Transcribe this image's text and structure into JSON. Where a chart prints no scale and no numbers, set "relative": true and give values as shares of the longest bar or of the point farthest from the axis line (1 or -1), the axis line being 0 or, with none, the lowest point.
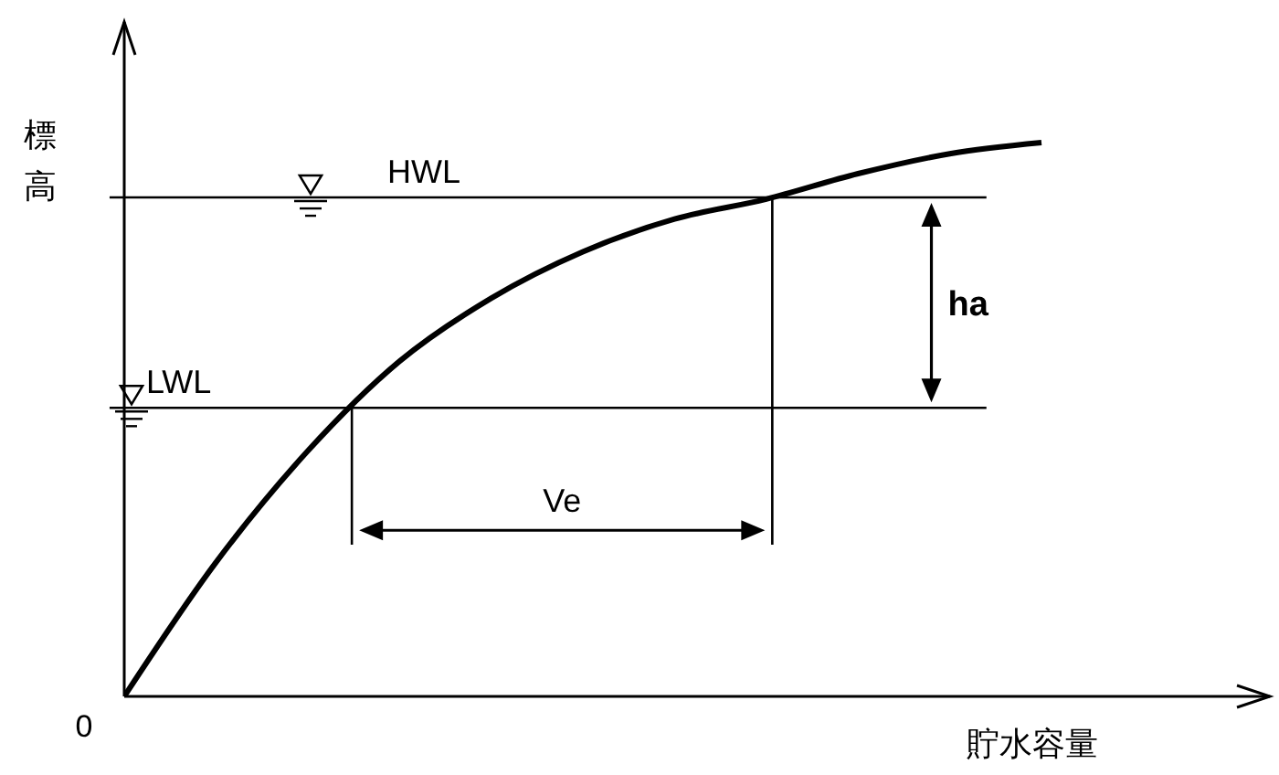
{
  "chart_data": {
    "type": "line",
    "relative": true,
    "xlabel": "貯水容量",
    "ylabel": "標高",
    "marker": "none",
    "line_style": "solid",
    "categories": [
      null,
      null,
      null,
      null,
      null,
      null,
      null,
      null,
      null,
      null,
      null
    ],
    "series": [
      {
        "color": "#000000",
        "values": [
          0,
          0.242,
          0.443,
          0.605,
          0.719,
          0.803,
          0.862,
          0.898,
          0.944,
          0.98,
          1
        ]
      }
    ],
    "ref_lines": [
      {
        "axis": "y",
        "value": 0.901,
        "label": "HWL"
      },
      {
        "axis": "y",
        "value": 0.521,
        "label": "LWL"
      }
    ],
    "annotations": [
      "Ve",
      "ha",
      "0"
    ]
  }
}
